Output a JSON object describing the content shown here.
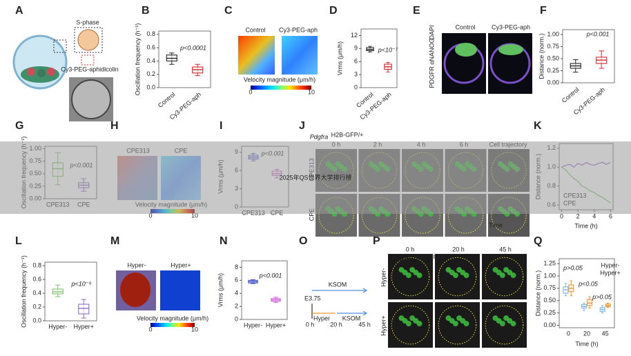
{
  "watermark": "2025年QS世界大学排行榜",
  "panels": [
    {
      "letter": "A",
      "texts": [
        "S-phase",
        "Cy3-PEG-aphidicolin"
      ]
    },
    {
      "letter": "B",
      "chart": {
        "type": "box",
        "ylabel": "Oscillation frequency (h⁻¹)",
        "ylim": [
          0,
          0.85
        ],
        "yticks": [
          {
            "value": 0,
            "label": "0.0"
          },
          0.2,
          0.4,
          0.6,
          0.8
        ],
        "categories": [
          "Control",
          "Cy3-PEG-aph"
        ],
        "boxes": [
          {
            "color": "#222222",
            "min": 0.35,
            "q1": 0.4,
            "median": 0.44,
            "q3": 0.49,
            "max": 0.52
          },
          {
            "color": "#d62728",
            "min": 0.18,
            "q1": 0.22,
            "median": 0.27,
            "q3": 0.31,
            "max": 0.35
          }
        ],
        "annotations": [
          "p<0.0001"
        ]
      }
    },
    {
      "letter": "C",
      "texts": [
        "Control",
        "Cy3-PEG-aph",
        "Velocity magnitude (μm/h)"
      ],
      "colorbar_ticks": [
        0,
        10
      ]
    },
    {
      "letter": "D",
      "chart": {
        "type": "box",
        "ylabel": "Vrms (μm/h)",
        "ylim": [
          0,
          13.5
        ],
        "yticks": [
          0,
          3,
          6,
          9,
          12
        ],
        "categories": [
          "Control",
          "Cy3-PEG-aph"
        ],
        "boxes": [
          {
            "color": "#222222",
            "min": 8.2,
            "q1": 8.5,
            "median": 8.8,
            "q3": 9.2,
            "max": 9.5
          },
          {
            "color": "#d62728",
            "min": 3.6,
            "q1": 4.2,
            "median": 4.8,
            "q3": 5.4,
            "max": 5.8
          }
        ],
        "annotations": [
          "p<10⁻⁷"
        ]
      }
    },
    {
      "letter": "E",
      "texts": [
        "Control",
        "Cy3-PEG-aph",
        "PDGFR α",
        "NANOG",
        "DAPI"
      ]
    },
    {
      "letter": "F",
      "chart": {
        "type": "box",
        "ylabel": "Distance (norm.)",
        "ylim": [
          0,
          1.1
        ],
        "yticks": [
          {
            "value": 0,
            "label": "0.00"
          },
          0.25,
          {
            "value": 0.5,
            "label": "0.50"
          },
          0.75,
          {
            "value": 1,
            "label": "1.00"
          }
        ],
        "categories": [
          "Control",
          "Cy3-PEG-aph"
        ],
        "boxes": [
          {
            "color": "#222222",
            "min": 0.22,
            "q1": 0.3,
            "median": 0.35,
            "q3": 0.4,
            "max": 0.48
          },
          {
            "color": "#d62728",
            "min": 0.3,
            "q1": 0.4,
            "median": 0.47,
            "q3": 0.53,
            "max": 0.66
          }
        ],
        "annotations": [
          "p<0.001"
        ]
      }
    },
    {
      "letter": "G",
      "chart": {
        "type": "box",
        "ylabel": "Oscillation frequency (h⁻¹)",
        "ylim": [
          0,
          1.05
        ],
        "yticks": [
          {
            "value": 0,
            "label": "0.00"
          },
          0.25,
          {
            "value": 0.5,
            "label": "0.50"
          },
          0.75,
          {
            "value": 1,
            "label": "1.00"
          }
        ],
        "categories": [
          "CPE313",
          "CPE"
        ],
        "boxes": [
          {
            "color": "#7cc46a",
            "min": 0.28,
            "q1": 0.45,
            "median": 0.6,
            "q3": 0.72,
            "max": 0.92
          },
          {
            "color": "#8e6cc9",
            "min": 0.15,
            "q1": 0.22,
            "median": 0.27,
            "q3": 0.32,
            "max": 0.4
          }
        ],
        "annotations": [
          "p<0.001"
        ]
      }
    },
    {
      "letter": "H",
      "texts": [
        "CPE313",
        "CPE",
        "Velocity magnitude (μm/h)"
      ],
      "colorbar_ticks": [
        0,
        10
      ]
    },
    {
      "letter": "I",
      "chart": {
        "type": "box",
        "ylabel": "Vrms (μm/h)",
        "ylim": [
          0,
          10
        ],
        "yticks": [
          0,
          3,
          6,
          9
        ],
        "categories": [
          "CPE313",
          "CPE"
        ],
        "boxes": [
          {
            "color": "#5a5fc8",
            "min": 7.6,
            "q1": 7.9,
            "median": 8.2,
            "q3": 8.5,
            "max": 8.8
          },
          {
            "color": "#c86ad0",
            "min": 4.8,
            "q1": 5.2,
            "median": 5.5,
            "q3": 5.9,
            "max": 6.2
          }
        ],
        "annotations": [
          "p<0.001"
        ]
      }
    },
    {
      "letter": "J",
      "texts": [
        "Pdgfra",
        "H2B-GFP/+",
        "0 h",
        "2 h",
        "4 h",
        "6 h",
        "Cell trajectory",
        "CPE313",
        "CPE",
        "Time"
      ]
    },
    {
      "letter": "K",
      "chart": {
        "type": "line",
        "ylabel": "Distance (norm.)",
        "xlabel": "Time (h)",
        "xlim": [
          -0.3,
          6.3
        ],
        "xticks": [
          0,
          2,
          4,
          6
        ],
        "ylim": [
          0.55,
          1.25
        ],
        "yticks": [
          0.6,
          0.8,
          {
            "value": 1,
            "label": "1.0"
          },
          1.2
        ],
        "x": [
          0,
          0.5,
          1,
          1.5,
          2,
          2.5,
          3,
          3.5,
          4,
          4.5,
          5,
          5.5,
          6
        ],
        "series": [
          {
            "name": "CPE313",
            "color": "#7cc46a",
            "values": [
              1.0,
              0.97,
              0.92,
              0.88,
              0.85,
              0.8,
              0.78,
              0.75,
              0.73,
              0.7,
              0.68,
              0.65,
              0.62
            ]
          },
          {
            "name": "CPE",
            "color": "#8e6cc9",
            "values": [
              1.0,
              1.02,
              1.03,
              1.0,
              1.04,
              1.02,
              1.05,
              1.03,
              1.02,
              1.04,
              1.05,
              1.03,
              1.05
            ]
          }
        ]
      }
    },
    {
      "letter": "L",
      "chart": {
        "type": "box",
        "ylabel": "Oscillation frequency (h⁻¹)",
        "ylim": [
          0,
          0.85
        ],
        "yticks": [
          {
            "value": 0,
            "label": "0.0"
          },
          0.2,
          0.4,
          0.6,
          0.8
        ],
        "categories": [
          "Hyper-",
          "Hyper+"
        ],
        "boxes": [
          {
            "color": "#7cc46a",
            "min": 0.35,
            "q1": 0.39,
            "median": 0.42,
            "q3": 0.46,
            "max": 0.52
          },
          {
            "color": "#8e6cc9",
            "min": 0.04,
            "q1": 0.1,
            "median": 0.18,
            "q3": 0.24,
            "max": 0.31
          }
        ],
        "annotations": [
          "p<10⁻⁹"
        ]
      }
    },
    {
      "letter": "M",
      "texts": [
        "Hyper-",
        "Hyper+",
        "Velocity magnitude (μm/h)"
      ],
      "colorbar_ticks": [
        0,
        10
      ]
    },
    {
      "letter": "N",
      "chart": {
        "type": "box",
        "ylabel": "Vrms (μm/h)",
        "ylim": [
          0,
          9
        ],
        "yticks": [
          0,
          2,
          4,
          6,
          8
        ],
        "categories": [
          "Hyper-",
          "Hyper+"
        ],
        "boxes": [
          {
            "color": "#3b4cc0",
            "min": 5.5,
            "q1": 5.6,
            "median": 5.8,
            "q3": 6.0,
            "max": 6.1
          },
          {
            "color": "#d05ad8",
            "min": 2.6,
            "q1": 2.8,
            "median": 3.0,
            "q3": 3.2,
            "max": 3.4
          }
        ],
        "annotations": [
          "p<0.001"
        ]
      }
    },
    {
      "letter": "O",
      "texts": [
        "E3.75",
        "KSOM",
        "Hyper",
        "KSOM",
        "0 h",
        "20 h",
        "45 h"
      ]
    },
    {
      "letter": "P",
      "texts": [
        "Pdgfra",
        "H2B-GFP/+",
        "0 h",
        "20 h",
        "45 h",
        "Hyper-",
        "Hyper+"
      ]
    },
    {
      "letter": "Q",
      "chart": {
        "type": "box",
        "ylabel": "Distance (norm.)",
        "xlabel": "Time (h)",
        "ylim": [
          -0.05,
          1.35
        ],
        "yticks": [
          {
            "value": 0,
            "label": "0.00"
          },
          0.25,
          {
            "value": 0.5,
            "label": "0.50"
          },
          0.75,
          {
            "value": 1,
            "label": "1.00"
          },
          1.25
        ],
        "categories": [
          "0",
          "20",
          "45"
        ],
        "series": [
          {
            "name": "Hyper-",
            "color": "#7fb8e6",
            "boxes": [
              {
                "min": 0.6,
                "q1": 0.65,
                "median": 0.72,
                "q3": 0.78,
                "max": 0.85
              },
              {
                "min": 0.3,
                "q1": 0.35,
                "median": 0.38,
                "q3": 0.42,
                "max": 0.45
              },
              {
                "min": 0.25,
                "q1": 0.28,
                "median": 0.32,
                "q3": 0.36,
                "max": 0.4
              }
            ]
          },
          {
            "name": "Hyper+",
            "color": "#f0962e",
            "boxes": [
              {
                "min": 0.6,
                "q1": 0.68,
                "median": 0.75,
                "q3": 0.82,
                "max": 0.9
              },
              {
                "min": 0.35,
                "q1": 0.4,
                "median": 0.45,
                "q3": 0.52,
                "max": 0.58
              },
              {
                "min": 0.36,
                "q1": 0.38,
                "median": 0.4,
                "q3": 0.43,
                "max": 0.45
              }
            ]
          }
        ],
        "annotations": [
          "p>0.05",
          "p<0.05",
          "p>0.05"
        ]
      }
    }
  ]
}
